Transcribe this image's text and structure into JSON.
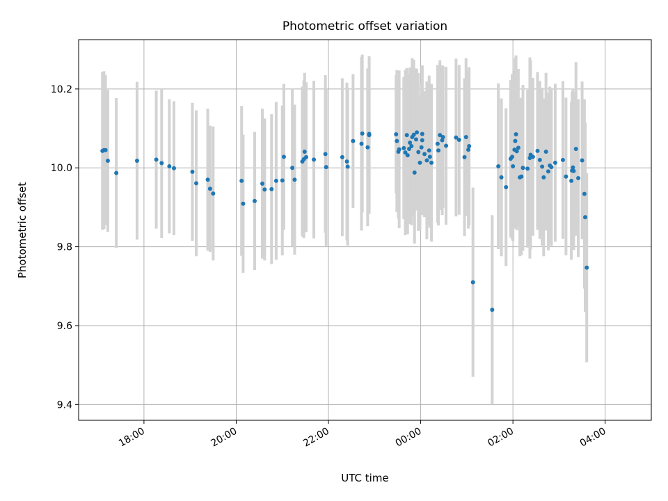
{
  "chart_data": {
    "type": "scatter",
    "title": "Photometric offset variation",
    "xlabel": "UTC time",
    "ylabel": "Photometric offset",
    "x_tick_labels": [
      "18:00",
      "20:00",
      "22:00",
      "00:00",
      "02:00",
      "04:00"
    ],
    "y_tick_labels": [
      "9.4",
      "9.6",
      "9.8",
      "10.0",
      "10.2"
    ],
    "xlim": [
      "16:35",
      "05:00"
    ],
    "ylim": [
      9.36,
      10.325
    ],
    "grid": true,
    "colors": {
      "points": "#1f77b4",
      "errorbars": "#d3d3d3",
      "grid": "#b0b0b0"
    },
    "points": [
      {
        "x": "17:06",
        "y": 10.043,
        "err": 0.2
      },
      {
        "x": "17:08",
        "y": 10.045,
        "err": 0.2
      },
      {
        "x": "17:10",
        "y": 10.045,
        "err": 0.19
      },
      {
        "x": "17:13",
        "y": 10.018,
        "err": 0.18
      },
      {
        "x": "17:24",
        "y": 9.987,
        "err": 0.19
      },
      {
        "x": "17:51",
        "y": 10.018,
        "err": 0.2
      },
      {
        "x": "18:16",
        "y": 10.021,
        "err": 0.175
      },
      {
        "x": "18:23",
        "y": 10.012,
        "err": 0.19
      },
      {
        "x": "18:33",
        "y": 10.004,
        "err": 0.17
      },
      {
        "x": "18:39",
        "y": 9.999,
        "err": 0.17
      },
      {
        "x": "19:03",
        "y": 9.99,
        "err": 0.175
      },
      {
        "x": "19:08",
        "y": 9.961,
        "err": 0.185
      },
      {
        "x": "19:23",
        "y": 9.97,
        "err": 0.18
      },
      {
        "x": "19:26",
        "y": 9.947,
        "err": 0.16
      },
      {
        "x": "19:30",
        "y": 9.935,
        "err": 0.17
      },
      {
        "x": "20:07",
        "y": 9.967,
        "err": 0.19
      },
      {
        "x": "20:09",
        "y": 9.909,
        "err": 0.175
      },
      {
        "x": "20:24",
        "y": 9.916,
        "err": 0.175
      },
      {
        "x": "20:34",
        "y": 9.96,
        "err": 0.19
      },
      {
        "x": "20:37",
        "y": 9.945,
        "err": 0.18
      },
      {
        "x": "20:46",
        "y": 9.946,
        "err": 0.19
      },
      {
        "x": "20:52",
        "y": 9.967,
        "err": 0.2
      },
      {
        "x": "21:00",
        "y": 9.968,
        "err": 0.19
      },
      {
        "x": "21:02",
        "y": 10.028,
        "err": 0.185
      },
      {
        "x": "21:13",
        "y": 10.0,
        "err": 0.2
      },
      {
        "x": "21:16",
        "y": 9.97,
        "err": 0.19
      },
      {
        "x": "21:26",
        "y": 10.016,
        "err": 0.19
      },
      {
        "x": "21:28",
        "y": 10.022,
        "err": 0.2
      },
      {
        "x": "21:29",
        "y": 10.041,
        "err": 0.2
      },
      {
        "x": "21:31",
        "y": 10.027,
        "err": 0.19
      },
      {
        "x": "21:41",
        "y": 10.021,
        "err": 0.2
      },
      {
        "x": "21:56",
        "y": 10.035,
        "err": 0.2
      },
      {
        "x": "21:57",
        "y": 10.002,
        "err": 0.2
      },
      {
        "x": "22:18",
        "y": 10.027,
        "err": 0.2
      },
      {
        "x": "22:24",
        "y": 10.016,
        "err": 0.2
      },
      {
        "x": "22:25",
        "y": 10.003,
        "err": 0.2
      },
      {
        "x": "22:32",
        "y": 10.068,
        "err": 0.17
      },
      {
        "x": "22:43",
        "y": 10.061,
        "err": 0.22
      },
      {
        "x": "22:44",
        "y": 10.087,
        "err": 0.2
      },
      {
        "x": "22:51",
        "y": 10.052,
        "err": 0.2
      },
      {
        "x": "22:53",
        "y": 10.086,
        "err": 0.19
      },
      {
        "x": "22:53",
        "y": 10.083,
        "err": 0.2
      },
      {
        "x": "23:28",
        "y": 10.085,
        "err": 0.15
      },
      {
        "x": "23:29",
        "y": 10.068,
        "err": 0.18
      },
      {
        "x": "23:31",
        "y": 10.041,
        "err": 0.17
      },
      {
        "x": "23:32",
        "y": 10.047,
        "err": 0.2
      },
      {
        "x": "23:38",
        "y": 10.05,
        "err": 0.18
      },
      {
        "x": "23:40",
        "y": 10.039,
        "err": 0.21
      },
      {
        "x": "23:42",
        "y": 10.083,
        "err": 0.17
      },
      {
        "x": "23:43",
        "y": 10.032,
        "err": 0.2
      },
      {
        "x": "23:45",
        "y": 10.048,
        "err": 0.19
      },
      {
        "x": "23:46",
        "y": 10.064,
        "err": 0.19
      },
      {
        "x": "23:48",
        "y": 10.055,
        "err": 0.2
      },
      {
        "x": "23:49",
        "y": 10.078,
        "err": 0.2
      },
      {
        "x": "23:51",
        "y": 10.084,
        "err": 0.19
      },
      {
        "x": "23:52",
        "y": 9.988,
        "err": 0.18
      },
      {
        "x": "23:54",
        "y": 10.072,
        "err": 0.18
      },
      {
        "x": "23:55",
        "y": 10.09,
        "err": 0.16
      },
      {
        "x": "23:57",
        "y": 10.04,
        "err": 0.2
      },
      {
        "x": "23:59",
        "y": 10.013,
        "err": 0.17
      },
      {
        "x": "00:01",
        "y": 10.052,
        "err": 0.16
      },
      {
        "x": "00:02",
        "y": 10.07,
        "err": 0.19
      },
      {
        "x": "00:02",
        "y": 10.086,
        "err": 0.17
      },
      {
        "x": "00:05",
        "y": 10.035,
        "err": 0.16
      },
      {
        "x": "00:08",
        "y": 10.019,
        "err": 0.2
      },
      {
        "x": "00:11",
        "y": 10.044,
        "err": 0.19
      },
      {
        "x": "00:12",
        "y": 10.028,
        "err": 0.18
      },
      {
        "x": "00:14",
        "y": 10.013,
        "err": 0.2
      },
      {
        "x": "00:22",
        "y": 10.061,
        "err": 0.2
      },
      {
        "x": "00:23",
        "y": 10.044,
        "err": 0.19
      },
      {
        "x": "00:25",
        "y": 10.083,
        "err": 0.19
      },
      {
        "x": "00:28",
        "y": 10.07,
        "err": 0.19
      },
      {
        "x": "00:29",
        "y": 10.078,
        "err": 0.18
      },
      {
        "x": "00:33",
        "y": 10.056,
        "err": 0.2
      },
      {
        "x": "00:46",
        "y": 10.077,
        "err": 0.2
      },
      {
        "x": "00:50",
        "y": 10.071,
        "err": 0.19
      },
      {
        "x": "00:57",
        "y": 10.027,
        "err": 0.2
      },
      {
        "x": "00:59",
        "y": 10.078,
        "err": 0.2
      },
      {
        "x": "01:02",
        "y": 10.046,
        "err": 0.2
      },
      {
        "x": "01:03",
        "y": 10.055,
        "err": 0.2
      },
      {
        "x": "01:08",
        "y": 9.71,
        "err": 0.24
      },
      {
        "x": "01:33",
        "y": 9.64,
        "err": 0.24
      },
      {
        "x": "01:41",
        "y": 10.004,
        "err": 0.21
      },
      {
        "x": "01:45",
        "y": 9.976,
        "err": 0.2
      },
      {
        "x": "01:51",
        "y": 9.951,
        "err": 0.2
      },
      {
        "x": "01:57",
        "y": 10.023,
        "err": 0.2
      },
      {
        "x": "01:59",
        "y": 10.028,
        "err": 0.21
      },
      {
        "x": "02:00",
        "y": 10.004,
        "err": 0.19
      },
      {
        "x": "02:02",
        "y": 10.046,
        "err": 0.2
      },
      {
        "x": "02:03",
        "y": 10.068,
        "err": 0.21
      },
      {
        "x": "02:04",
        "y": 10.085,
        "err": 0.2
      },
      {
        "x": "02:05",
        "y": 10.042,
        "err": 0.2
      },
      {
        "x": "02:07",
        "y": 10.051,
        "err": 0.2
      },
      {
        "x": "02:09",
        "y": 9.976,
        "err": 0.2
      },
      {
        "x": "02:11",
        "y": 9.978,
        "err": 0.2
      },
      {
        "x": "02:13",
        "y": 10.0,
        "err": 0.21
      },
      {
        "x": "02:19",
        "y": 9.998,
        "err": 0.2
      },
      {
        "x": "02:22",
        "y": 10.025,
        "err": 0.255
      },
      {
        "x": "02:23",
        "y": 10.033,
        "err": 0.24
      },
      {
        "x": "02:26",
        "y": 10.028,
        "err": 0.2
      },
      {
        "x": "02:32",
        "y": 10.043,
        "err": 0.2
      },
      {
        "x": "02:35",
        "y": 10.02,
        "err": 0.2
      },
      {
        "x": "02:38",
        "y": 10.003,
        "err": 0.2
      },
      {
        "x": "02:40",
        "y": 9.976,
        "err": 0.2
      },
      {
        "x": "02:43",
        "y": 10.041,
        "err": 0.2
      },
      {
        "x": "02:46",
        "y": 9.991,
        "err": 0.2
      },
      {
        "x": "02:48",
        "y": 10.006,
        "err": 0.2
      },
      {
        "x": "02:50",
        "y": 10.002,
        "err": 0.2
      },
      {
        "x": "02:55",
        "y": 10.013,
        "err": 0.2
      },
      {
        "x": "03:05",
        "y": 10.02,
        "err": 0.2
      },
      {
        "x": "03:09",
        "y": 9.978,
        "err": 0.2
      },
      {
        "x": "03:16",
        "y": 9.967,
        "err": 0.2
      },
      {
        "x": "03:17",
        "y": 9.993,
        "err": 0.2
      },
      {
        "x": "03:18",
        "y": 10.001,
        "err": 0.2
      },
      {
        "x": "03:19",
        "y": 9.992,
        "err": 0.2
      },
      {
        "x": "03:22",
        "y": 10.048,
        "err": 0.22
      },
      {
        "x": "03:25",
        "y": 9.974,
        "err": 0.2
      },
      {
        "x": "03:30",
        "y": 10.019,
        "err": 0.2
      },
      {
        "x": "03:33",
        "y": 9.934,
        "err": 0.24
      },
      {
        "x": "03:34",
        "y": 9.875,
        "err": 0.24
      },
      {
        "x": "03:36",
        "y": 9.747,
        "err": 0.24
      }
    ]
  }
}
